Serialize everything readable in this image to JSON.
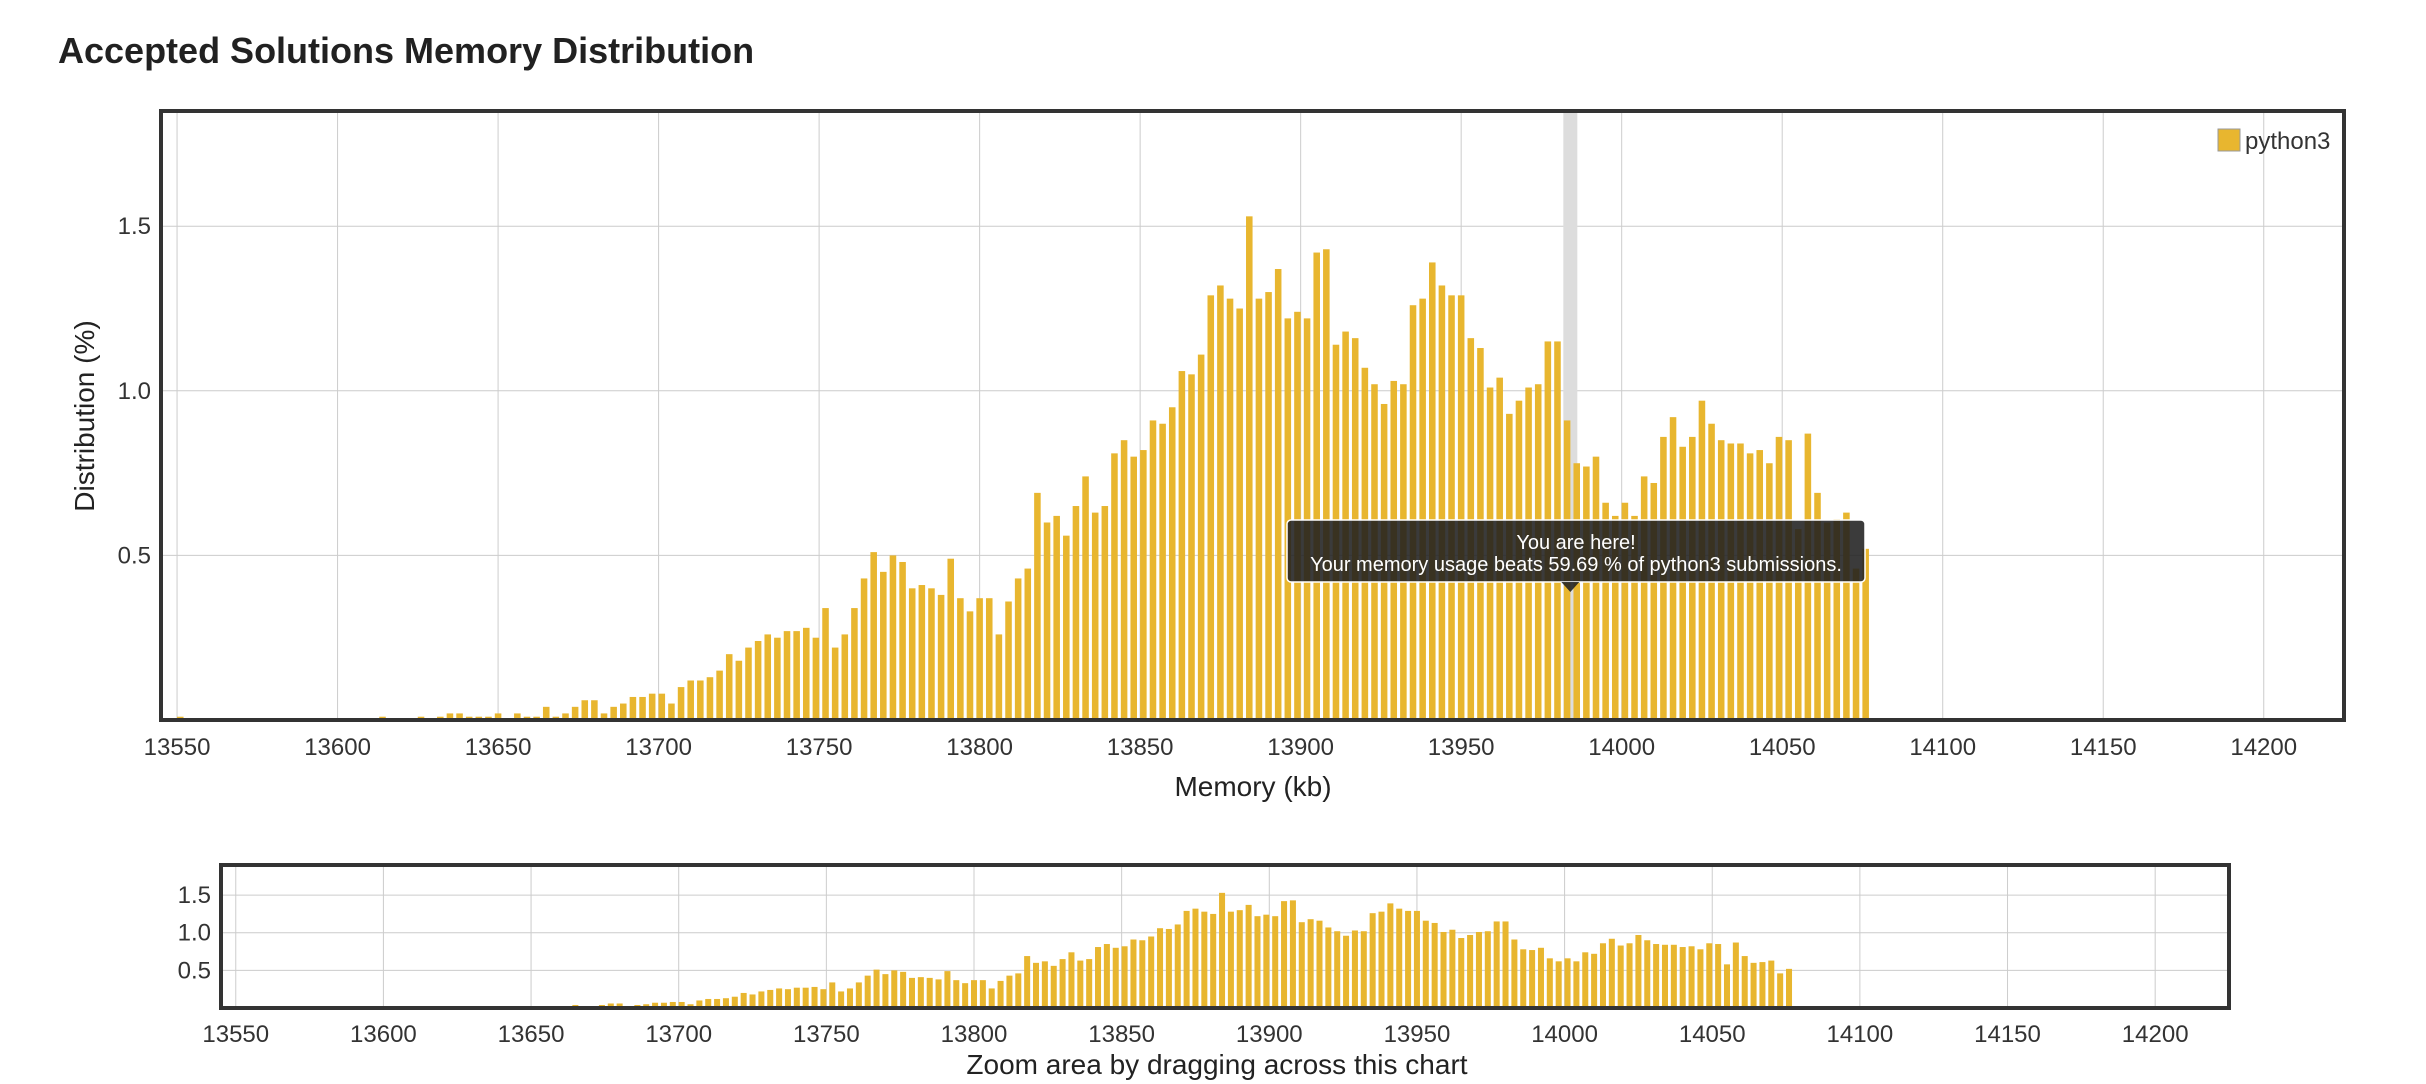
{
  "page": {
    "title": "Accepted Solutions Memory Distribution"
  },
  "colors": {
    "bar": "#E8B62F",
    "grid": "#CCCCCC",
    "frame": "#333333",
    "tooltip_bg": "rgba(32,32,32,0.88)",
    "highlight": "#DDDDDD"
  },
  "tooltip": {
    "line1": "You are here!",
    "line2": "Your memory usage beats 59.69 % of python3 submissions."
  },
  "navigator": {
    "caption": "Zoom area by dragging across this chart"
  },
  "chart_data": {
    "type": "bar",
    "title": "Accepted Solutions Memory Distribution",
    "xlabel": "Memory (kb)",
    "ylabel": "Distribution (%)",
    "legend": "python3",
    "legend_position": "top-right",
    "xlim": [
      13545,
      14225
    ],
    "ylim": [
      0,
      1.85
    ],
    "grid": true,
    "xticks": [
      13550,
      13600,
      13650,
      13700,
      13750,
      13800,
      13850,
      13900,
      13950,
      14000,
      14050,
      14100,
      14150,
      14200
    ],
    "yticks": [
      0.5,
      1.0,
      1.5
    ],
    "nav_yticks": [
      0.5,
      1.0,
      1.5
    ],
    "nav_ylim": [
      0,
      1.9
    ],
    "bin_width": 3,
    "highlight_x": 13984,
    "x_start": 13551,
    "values": [
      0.01,
      0,
      0,
      0,
      0,
      0,
      0,
      0,
      0,
      0,
      0,
      0,
      0,
      0,
      0,
      0,
      0,
      0,
      0,
      0,
      0,
      0.01,
      0,
      0,
      0,
      0.01,
      0,
      0.01,
      0.02,
      0.02,
      0.01,
      0.01,
      0.01,
      0.02,
      0,
      0.02,
      0.01,
      0.01,
      0.04,
      0.01,
      0.02,
      0.04,
      0.06,
      0.06,
      0.02,
      0.04,
      0.05,
      0.07,
      0.07,
      0.08,
      0.08,
      0.05,
      0.1,
      0.12,
      0.12,
      0.13,
      0.15,
      0.2,
      0.18,
      0.22,
      0.24,
      0.26,
      0.25,
      0.27,
      0.27,
      0.28,
      0.25,
      0.34,
      0.22,
      0.26,
      0.34,
      0.43,
      0.51,
      0.45,
      0.5,
      0.48,
      0.4,
      0.41,
      0.4,
      0.38,
      0.49,
      0.37,
      0.33,
      0.37,
      0.37,
      0.26,
      0.36,
      0.43,
      0.46,
      0.69,
      0.6,
      0.62,
      0.56,
      0.65,
      0.74,
      0.63,
      0.65,
      0.81,
      0.85,
      0.8,
      0.82,
      0.91,
      0.9,
      0.95,
      1.06,
      1.05,
      1.11,
      1.29,
      1.32,
      1.28,
      1.25,
      1.53,
      1.28,
      1.3,
      1.37,
      1.22,
      1.24,
      1.22,
      1.42,
      1.43,
      1.14,
      1.18,
      1.16,
      1.07,
      1.02,
      0.96,
      1.03,
      1.02,
      1.26,
      1.28,
      1.39,
      1.32,
      1.29,
      1.29,
      1.16,
      1.13,
      1.01,
      1.04,
      0.93,
      0.97,
      1.01,
      1.02,
      1.15,
      1.15,
      0.91,
      0.78,
      0.77,
      0.8,
      0.66,
      0.62,
      0.66,
      0.62,
      0.74,
      0.72,
      0.86,
      0.92,
      0.83,
      0.86,
      0.97,
      0.9,
      0.85,
      0.84,
      0.84,
      0.81,
      0.82,
      0.78,
      0.86,
      0.85,
      0.58,
      0.87,
      0.69,
      0.6,
      0.61,
      0.63,
      0.46,
      0.52
    ]
  }
}
